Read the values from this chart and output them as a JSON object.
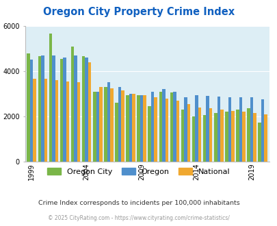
{
  "title": "Oregon City Property Crime Index",
  "title_color": "#1060c0",
  "subtitle": "Crime Index corresponds to incidents per 100,000 inhabitants",
  "footer": "© 2025 CityRating.com - https://www.cityrating.com/crime-statistics/",
  "years": [
    1999,
    2000,
    2001,
    2002,
    2003,
    2004,
    2005,
    2006,
    2007,
    2008,
    2009,
    2010,
    2011,
    2012,
    2013,
    2014,
    2015,
    2016,
    2017,
    2018,
    2019,
    2020
  ],
  "oregon_city": [
    4800,
    4650,
    5650,
    4550,
    5100,
    4650,
    3100,
    3300,
    2600,
    2950,
    2950,
    2450,
    3100,
    3050,
    2300,
    2000,
    2050,
    2150,
    2200,
    2300,
    2350,
    1720
  ],
  "oregon": [
    4500,
    4700,
    4700,
    4600,
    4700,
    4600,
    3100,
    3500,
    3300,
    3000,
    2950,
    3100,
    3200,
    3100,
    2850,
    2950,
    2900,
    2870,
    2860,
    2850,
    2850,
    2750
  ],
  "national": [
    3650,
    3650,
    3600,
    3550,
    3500,
    4400,
    3300,
    3250,
    3150,
    3000,
    2950,
    2850,
    2800,
    2700,
    2550,
    2400,
    2350,
    2300,
    2250,
    2200,
    2150,
    2100
  ],
  "bar_colors": {
    "oregon_city": "#7ab648",
    "oregon": "#4f8fcc",
    "national": "#f0a830"
  },
  "bg_color": "#ddeef5",
  "ylim": [
    0,
    6000
  ],
  "yticks": [
    0,
    2000,
    4000,
    6000
  ],
  "xtick_years": [
    1999,
    2004,
    2009,
    2014,
    2019
  ],
  "legend_labels": [
    "Oregon City",
    "Oregon",
    "National"
  ],
  "subtitle_color": "#333333",
  "footer_color": "#999999"
}
